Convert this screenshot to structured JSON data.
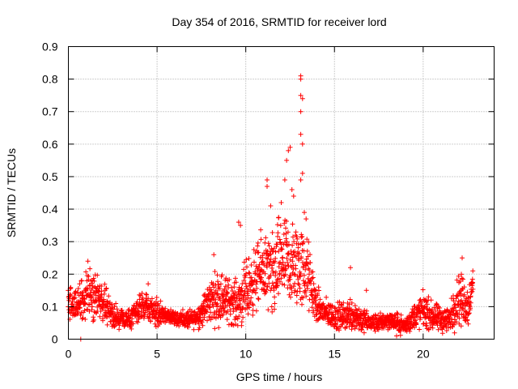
{
  "chart_data": {
    "type": "scatter",
    "title": "Day 354 of 2016, SRMTID for receiver lord",
    "xlabel": "GPS time / hours",
    "ylabel": "SRMTID / TECUs",
    "xlim": [
      0,
      24
    ],
    "ylim": [
      0,
      0.9
    ],
    "xticks": [
      0,
      5,
      10,
      15,
      20
    ],
    "xtick_labels": [
      "0",
      "5",
      "10",
      "15",
      "20"
    ],
    "yticks": [
      0,
      0.1,
      0.2,
      0.3,
      0.4,
      0.5,
      0.6,
      0.7,
      0.8,
      0.9
    ],
    "ytick_labels": [
      "0",
      "0.1",
      "0.2",
      "0.3",
      "0.4",
      "0.5",
      "0.6",
      "0.7",
      "0.8",
      "0.9"
    ],
    "grid": true,
    "marker": "plus",
    "series": [
      {
        "name": "SRMTID",
        "color": "#ff0000",
        "envelope": {
          "hours": [
            0.0,
            0.5,
            1.0,
            1.5,
            2.0,
            2.5,
            3.0,
            3.5,
            4.0,
            4.5,
            5.0,
            5.5,
            6.0,
            6.5,
            7.0,
            7.5,
            8.0,
            8.5,
            9.0,
            9.5,
            10.0,
            10.5,
            11.0,
            11.5,
            12.0,
            12.5,
            13.0,
            13.5,
            14.0,
            14.5,
            15.0,
            15.5,
            16.0,
            16.5,
            17.0,
            17.5,
            18.0,
            18.5,
            19.0,
            19.5,
            20.0,
            20.5,
            21.0,
            21.5,
            22.0,
            22.5,
            22.8
          ],
          "median": [
            0.12,
            0.1,
            0.14,
            0.13,
            0.12,
            0.07,
            0.06,
            0.06,
            0.09,
            0.1,
            0.08,
            0.07,
            0.07,
            0.06,
            0.06,
            0.08,
            0.12,
            0.13,
            0.12,
            0.11,
            0.14,
            0.18,
            0.22,
            0.18,
            0.25,
            0.22,
            0.23,
            0.2,
            0.1,
            0.08,
            0.07,
            0.07,
            0.08,
            0.06,
            0.05,
            0.05,
            0.06,
            0.05,
            0.04,
            0.07,
            0.09,
            0.07,
            0.06,
            0.06,
            0.13,
            0.1,
            0.17
          ],
          "spread": [
            0.04,
            0.04,
            0.05,
            0.05,
            0.04,
            0.03,
            0.02,
            0.02,
            0.03,
            0.03,
            0.03,
            0.02,
            0.02,
            0.02,
            0.02,
            0.03,
            0.05,
            0.06,
            0.05,
            0.05,
            0.07,
            0.07,
            0.08,
            0.1,
            0.1,
            0.1,
            0.1,
            0.08,
            0.04,
            0.03,
            0.03,
            0.03,
            0.04,
            0.03,
            0.02,
            0.02,
            0.02,
            0.02,
            0.02,
            0.03,
            0.04,
            0.03,
            0.03,
            0.03,
            0.06,
            0.05,
            0.03
          ]
        },
        "peaks": [
          [
            0.7,
            0.0
          ],
          [
            1.1,
            0.24
          ],
          [
            4.5,
            0.17
          ],
          [
            8.2,
            0.26
          ],
          [
            9.6,
            0.36
          ],
          [
            9.7,
            0.35
          ],
          [
            11.2,
            0.49
          ],
          [
            11.2,
            0.47
          ],
          [
            11.4,
            0.41
          ],
          [
            12.0,
            0.42
          ],
          [
            12.2,
            0.49
          ],
          [
            12.3,
            0.55
          ],
          [
            12.4,
            0.58
          ],
          [
            12.5,
            0.59
          ],
          [
            12.6,
            0.46
          ],
          [
            12.7,
            0.44
          ],
          [
            13.1,
            0.81
          ],
          [
            13.1,
            0.8
          ],
          [
            13.1,
            0.75
          ],
          [
            13.2,
            0.74
          ],
          [
            13.1,
            0.7
          ],
          [
            13.1,
            0.63
          ],
          [
            13.2,
            0.6
          ],
          [
            13.2,
            0.51
          ],
          [
            13.1,
            0.49
          ],
          [
            13.3,
            0.39
          ],
          [
            13.4,
            0.37
          ],
          [
            15.9,
            0.22
          ],
          [
            16.8,
            0.15
          ],
          [
            18.4,
            0.04
          ],
          [
            18.5,
            0.01
          ],
          [
            22.2,
            0.25
          ],
          [
            22.8,
            0.21
          ]
        ]
      }
    ]
  }
}
